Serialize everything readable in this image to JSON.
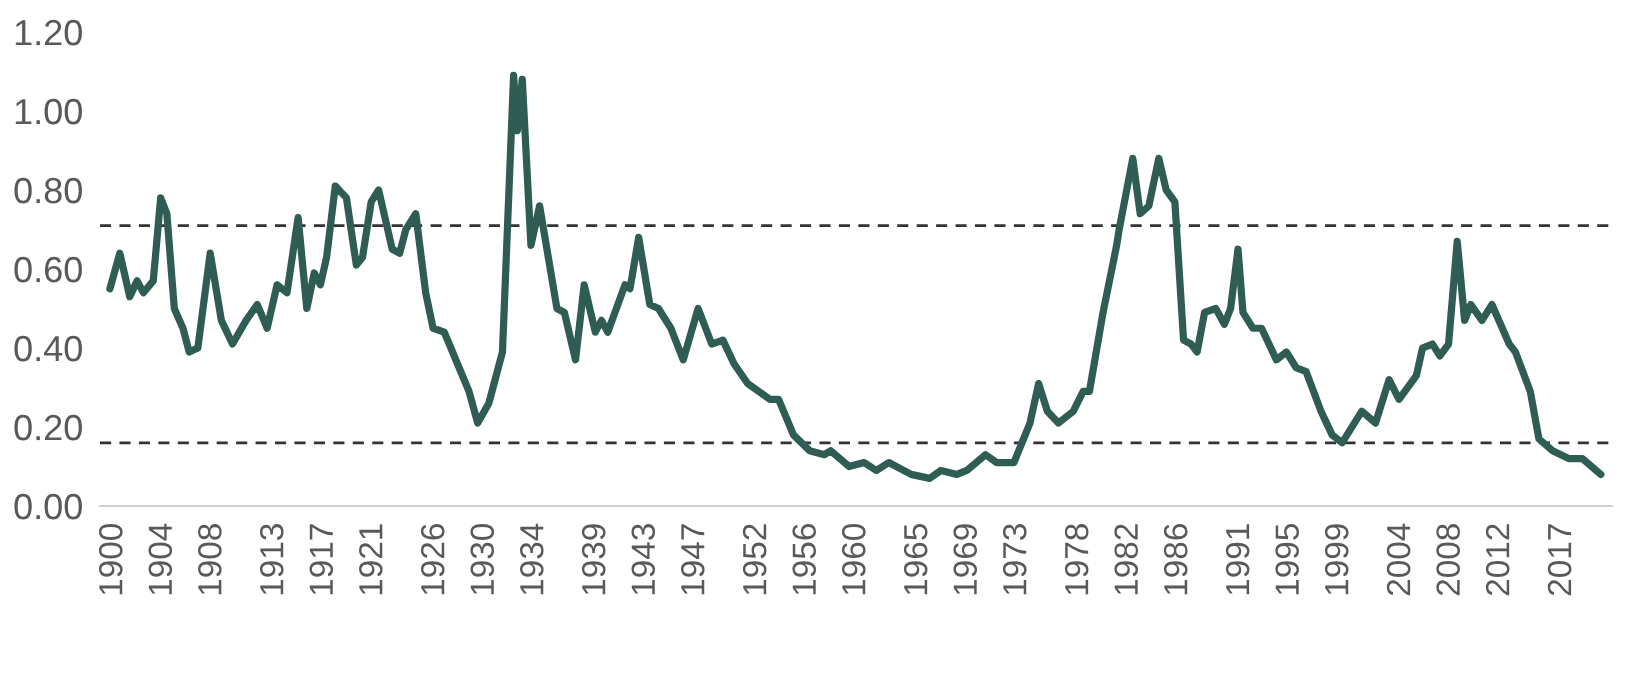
{
  "chart_data": {
    "type": "line",
    "color": "#2f5d54",
    "line_style": "solid",
    "marker": "none",
    "grid": false,
    "legend": false,
    "x": [
      1899.7,
      1900.5,
      1901.3,
      1901.9,
      1902.4,
      1903.2,
      1903.8,
      1904.3,
      1904.9,
      1905.6,
      1906.1,
      1906.8,
      1907.8,
      1908.7,
      1909.6,
      1910.7,
      1911.6,
      1912.4,
      1913.2,
      1914.0,
      1914.9,
      1915.6,
      1916.2,
      1916.7,
      1917.2,
      1917.9,
      1918.8,
      1919.6,
      1920.1,
      1920.8,
      1921.4,
      1922.5,
      1923.1,
      1923.6,
      1924.4,
      1925.2,
      1925.8,
      1926.7,
      1927.9,
      1928.7,
      1929.4,
      1930.3,
      1931.4,
      1932.3,
      1932.6,
      1933.0,
      1933.7,
      1934.4,
      1935.8,
      1936.4,
      1937.3,
      1938.0,
      1938.9,
      1939.4,
      1939.9,
      1940.6,
      1941.3,
      1941.7,
      1942.4,
      1943.3,
      1944.0,
      1945.0,
      1946.0,
      1947.2,
      1948.3,
      1949.2,
      1950.1,
      1951.2,
      1953.0,
      1953.7,
      1954.9,
      1956.2,
      1957.4,
      1957.9,
      1959.4,
      1960.6,
      1961.6,
      1962.6,
      1964.4,
      1965.9,
      1966.8,
      1968.1,
      1968.9,
      1970.4,
      1971.3,
      1972.7,
      1974.0,
      1974.7,
      1975.4,
      1976.3,
      1977.5,
      1978.3,
      1978.8,
      1979.9,
      1981.0,
      1981.2,
      1982.3,
      1982.9,
      1983.6,
      1984.4,
      1985.0,
      1985.7,
      1986.4,
      1987.0,
      1987.5,
      1988.1,
      1989.0,
      1989.7,
      1990.2,
      1990.8,
      1991.2,
      1992.0,
      1992.7,
      1993.9,
      1994.7,
      1995.5,
      1996.3,
      1997.5,
      1998.4,
      1999.2,
      2000.8,
      2001.9,
      2003.0,
      2003.8,
      2005.2,
      2005.7,
      2006.5,
      2007.1,
      2007.8,
      2008.5,
      2009.1,
      2009.6,
      2010.5,
      2011.3,
      2012.7,
      2013.2,
      2014.4,
      2015.1,
      2016.2,
      2017.5,
      2018.6,
      2020.1
    ],
    "values": [
      0.55,
      0.64,
      0.53,
      0.57,
      0.54,
      0.57,
      0.78,
      0.74,
      0.5,
      0.45,
      0.39,
      0.4,
      0.64,
      0.47,
      0.41,
      0.47,
      0.51,
      0.45,
      0.56,
      0.54,
      0.73,
      0.5,
      0.59,
      0.56,
      0.63,
      0.81,
      0.78,
      0.61,
      0.63,
      0.77,
      0.8,
      0.65,
      0.64,
      0.7,
      0.74,
      0.54,
      0.45,
      0.44,
      0.35,
      0.29,
      0.21,
      0.26,
      0.39,
      1.09,
      0.95,
      1.08,
      0.66,
      0.76,
      0.5,
      0.49,
      0.37,
      0.56,
      0.44,
      0.47,
      0.44,
      0.5,
      0.56,
      0.55,
      0.68,
      0.51,
      0.5,
      0.45,
      0.37,
      0.5,
      0.41,
      0.42,
      0.36,
      0.31,
      0.27,
      0.27,
      0.18,
      0.14,
      0.13,
      0.14,
      0.1,
      0.11,
      0.09,
      0.11,
      0.08,
      0.07,
      0.09,
      0.08,
      0.09,
      0.13,
      0.11,
      0.11,
      0.21,
      0.31,
      0.24,
      0.21,
      0.24,
      0.29,
      0.29,
      0.49,
      0.66,
      0.7,
      0.88,
      0.74,
      0.76,
      0.88,
      0.8,
      0.77,
      0.42,
      0.41,
      0.39,
      0.49,
      0.5,
      0.46,
      0.5,
      0.65,
      0.49,
      0.45,
      0.45,
      0.37,
      0.39,
      0.35,
      0.34,
      0.24,
      0.18,
      0.16,
      0.24,
      0.21,
      0.32,
      0.27,
      0.33,
      0.4,
      0.41,
      0.38,
      0.41,
      0.67,
      0.47,
      0.51,
      0.47,
      0.51,
      0.41,
      0.39,
      0.29,
      0.17,
      0.14,
      0.12,
      0.12,
      0.08
    ],
    "xlim": [
      1898.9,
      2021.0
    ],
    "xticks": [
      1900,
      1904,
      1908,
      1913,
      1917,
      1921,
      1926,
      1930,
      1934,
      1939,
      1943,
      1947,
      1952,
      1956,
      1960,
      1965,
      1969,
      1973,
      1978,
      1982,
      1986,
      1991,
      1995,
      1999,
      2004,
      2008,
      2012,
      2017
    ],
    "ylim": [
      0,
      1.2
    ],
    "yticks": [
      {
        "value": 0,
        "label": "0.00"
      },
      {
        "value": 0.2,
        "label": "0.20"
      },
      {
        "value": 0.4,
        "label": "0.40"
      },
      {
        "value": 0.6,
        "label": "0.60"
      },
      {
        "value": 0.8,
        "label": "0.80"
      },
      {
        "value": 1.0,
        "label": "1.00"
      },
      {
        "value": 1.2,
        "label": "1.20"
      }
    ],
    "ref_lines": [
      {
        "axis": "y",
        "value": 0.71,
        "color": "#333333",
        "line_style": "dashed"
      },
      {
        "axis": "y",
        "value": 0.16,
        "color": "#333333",
        "line_style": "dashed"
      }
    ]
  }
}
